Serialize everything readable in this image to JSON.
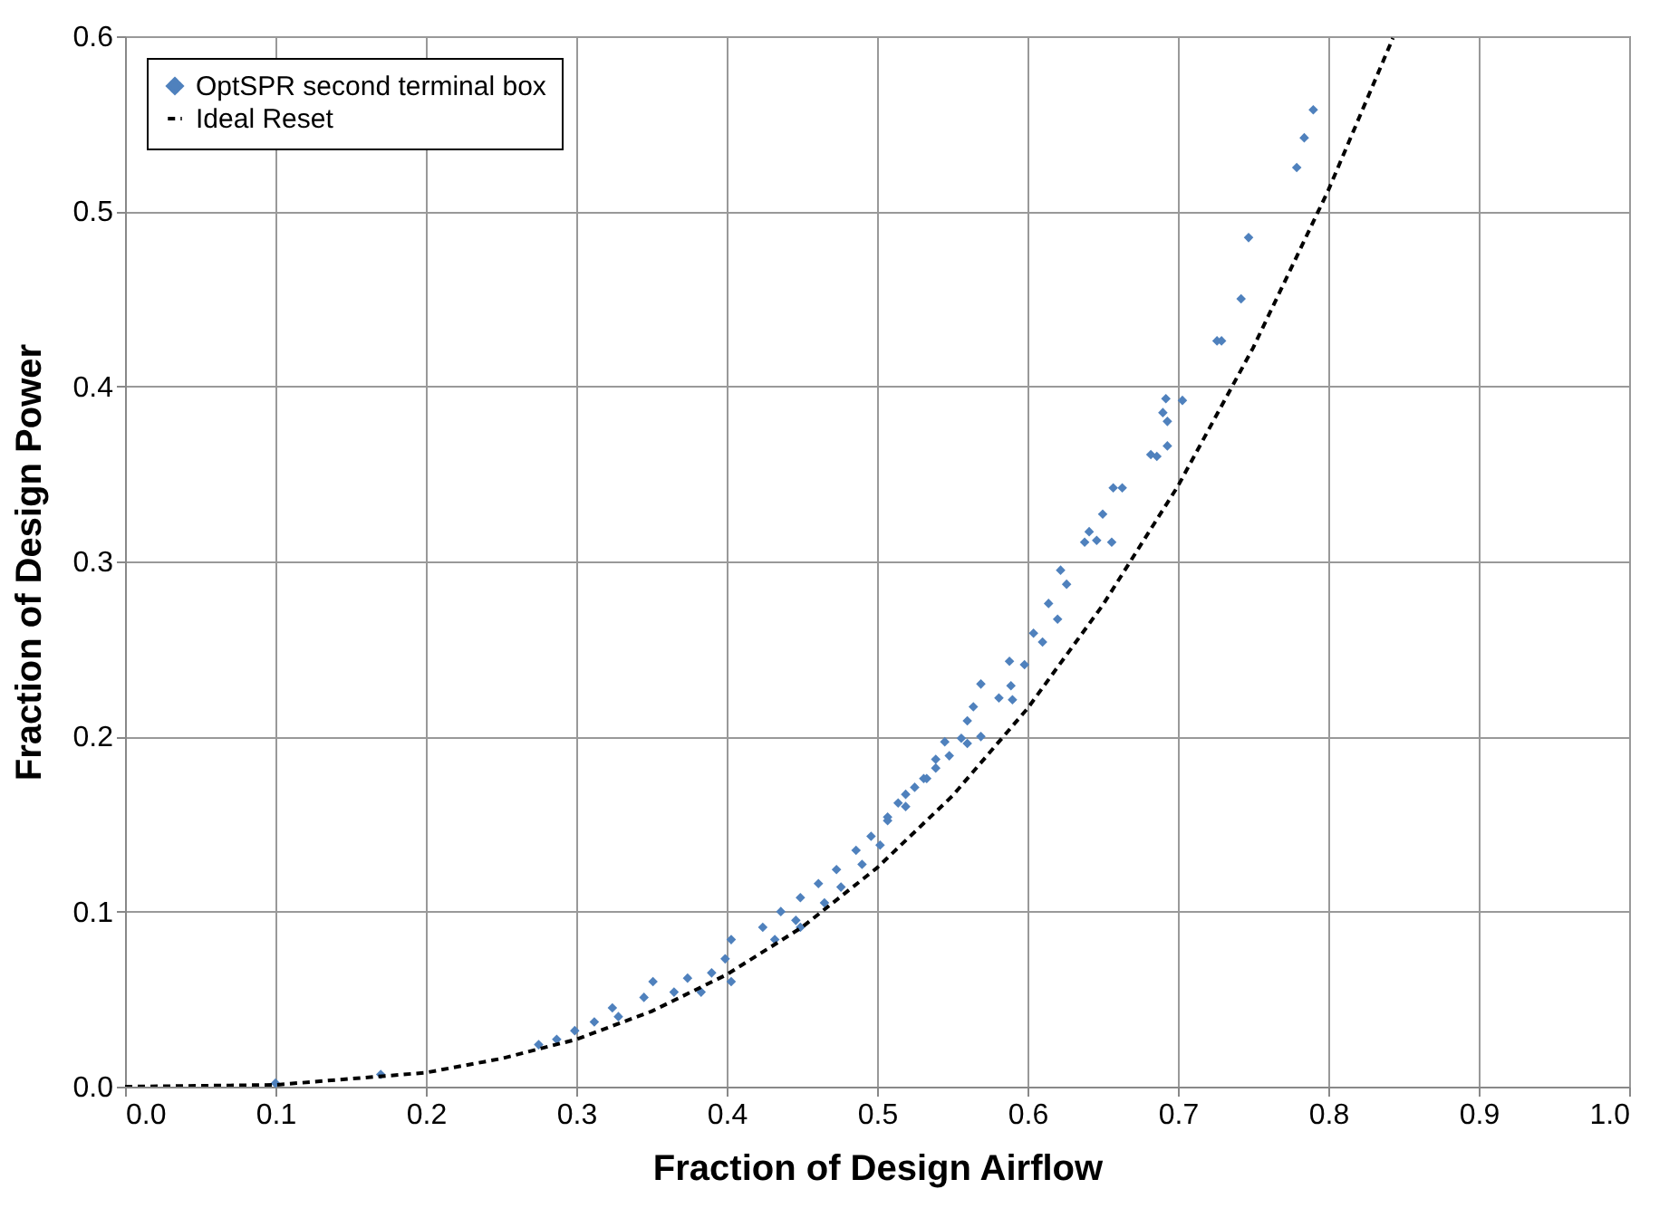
{
  "chart_data": {
    "type": "scatter",
    "xlabel": "Fraction of Design Airflow",
    "ylabel": "Fraction of Design Power",
    "xlim": [
      0,
      1
    ],
    "ylim": [
      0,
      0.6
    ],
    "xticks": [
      {
        "value": 0,
        "label": "0.0"
      },
      0.1,
      0.2,
      0.3,
      0.4,
      0.5,
      0.6,
      0.7,
      0.8,
      0.9,
      {
        "value": 1,
        "label": "1.0"
      }
    ],
    "yticks": [
      {
        "value": 0,
        "label": "0.0"
      },
      0.1,
      0.2,
      0.3,
      0.4,
      0.5,
      0.6
    ],
    "grid": true,
    "legend": "top left",
    "series": [
      {
        "name": "OptSPR second terminal box",
        "color": "#4f81bd",
        "marker": "diamond",
        "x": [
          0.1,
          0.17,
          0.275,
          0.287,
          0.299,
          0.312,
          0.324,
          0.328,
          0.345,
          0.351,
          0.365,
          0.374,
          0.383,
          0.39,
          0.399,
          0.403,
          0.403,
          0.424,
          0.432,
          0.436,
          0.446,
          0.449,
          0.449,
          0.461,
          0.465,
          0.473,
          0.476,
          0.486,
          0.49,
          0.496,
          0.502,
          0.507,
          0.507,
          0.514,
          0.519,
          0.519,
          0.525,
          0.531,
          0.533,
          0.539,
          0.539,
          0.545,
          0.548,
          0.556,
          0.56,
          0.56,
          0.564,
          0.569,
          0.569,
          0.581,
          0.588,
          0.589,
          0.59,
          0.598,
          0.604,
          0.61,
          0.614,
          0.62,
          0.622,
          0.626,
          0.638,
          0.641,
          0.646,
          0.65,
          0.656,
          0.657,
          0.663,
          0.682,
          0.686,
          0.69,
          0.692,
          0.693,
          0.693,
          0.703,
          0.726,
          0.729,
          0.742,
          0.747,
          0.779,
          0.784,
          0.79
        ],
        "values": [
          0.002,
          0.007,
          0.024,
          0.027,
          0.032,
          0.037,
          0.045,
          0.04,
          0.051,
          0.06,
          0.054,
          0.062,
          0.054,
          0.065,
          0.073,
          0.084,
          0.06,
          0.091,
          0.084,
          0.1,
          0.095,
          0.108,
          0.091,
          0.116,
          0.105,
          0.124,
          0.114,
          0.135,
          0.127,
          0.143,
          0.138,
          0.152,
          0.154,
          0.162,
          0.167,
          0.16,
          0.171,
          0.176,
          0.176,
          0.187,
          0.182,
          0.197,
          0.189,
          0.199,
          0.209,
          0.196,
          0.217,
          0.23,
          0.2,
          0.222,
          0.243,
          0.229,
          0.221,
          0.241,
          0.259,
          0.254,
          0.276,
          0.267,
          0.295,
          0.287,
          0.311,
          0.317,
          0.312,
          0.327,
          0.311,
          0.342,
          0.342,
          0.361,
          0.36,
          0.385,
          0.393,
          0.38,
          0.366,
          0.392,
          0.426,
          0.426,
          0.45,
          0.485,
          0.525,
          0.542,
          0.558
        ]
      },
      {
        "name": "Ideal Reset",
        "color": "#000000",
        "type": "line",
        "line_style": "dashed",
        "marker": "none",
        "x": [
          0,
          0.1,
          0.2,
          0.25,
          0.3,
          0.35,
          0.4,
          0.45,
          0.5,
          0.55,
          0.6,
          0.65,
          0.7,
          0.75,
          0.8,
          0.843
        ],
        "values": [
          0,
          0.001,
          0.008,
          0.016,
          0.027,
          0.043,
          0.064,
          0.091,
          0.125,
          0.166,
          0.216,
          0.275,
          0.343,
          0.422,
          0.512,
          0.599
        ]
      }
    ]
  }
}
